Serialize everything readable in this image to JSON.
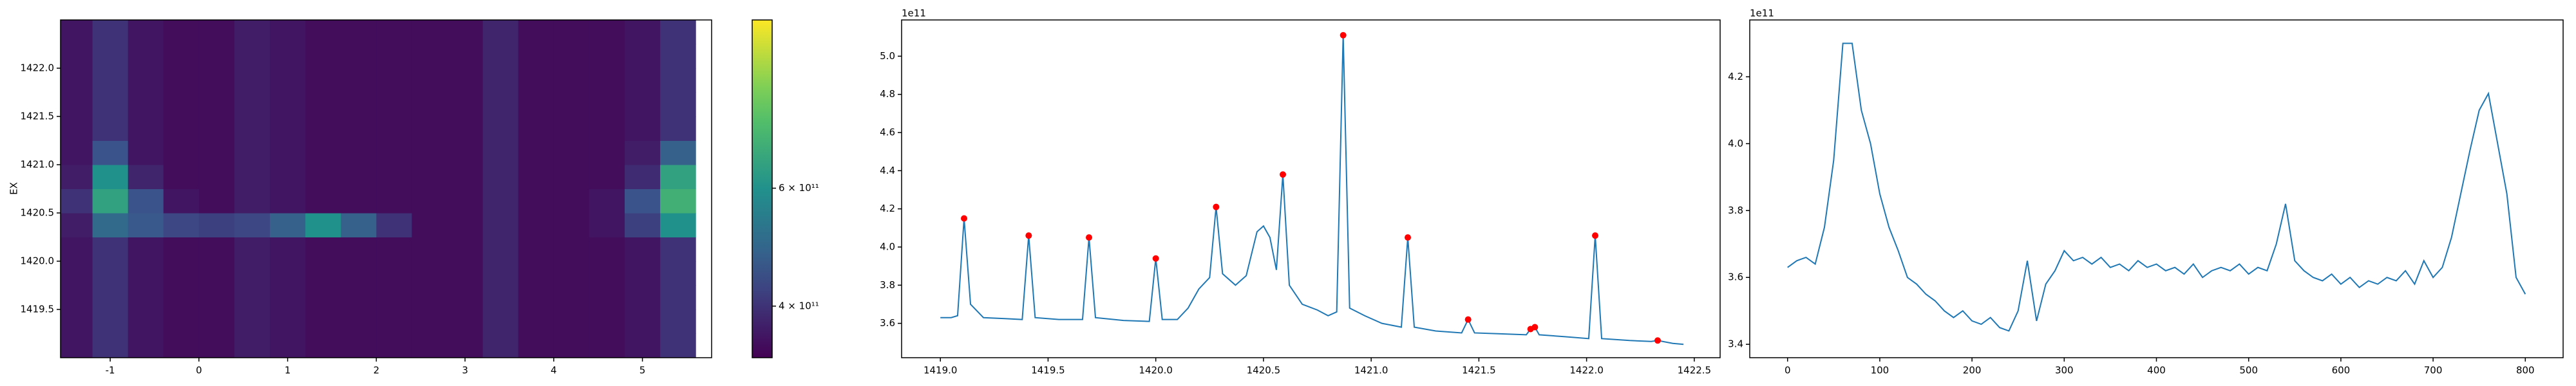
{
  "chart_data": [
    {
      "type": "heatmap",
      "ylabel": "EX",
      "colormap": "viridis",
      "x": [
        -1.4,
        -1.0,
        -0.6,
        -0.2,
        0.2,
        0.6,
        1.0,
        1.4,
        1.8,
        2.2,
        2.6,
        3.0,
        3.4,
        3.8,
        4.2,
        4.6,
        5.0,
        5.4
      ],
      "y": [
        1419.125,
        1419.375,
        1419.625,
        1419.875,
        1420.125,
        1420.375,
        1420.625,
        1420.875,
        1421.125,
        1421.375,
        1421.625,
        1421.875,
        1422.125,
        1422.375
      ],
      "z": [
        [
          360000000000.0,
          400000000000.0,
          360000000000.0,
          350000000000.0,
          350000000000.0,
          370000000000.0,
          360000000000.0,
          350000000000.0,
          350000000000.0,
          350000000000.0,
          350000000000.0,
          350000000000.0,
          380000000000.0,
          350000000000.0,
          350000000000.0,
          350000000000.0,
          360000000000.0,
          400000000000.0
        ],
        [
          360000000000.0,
          400000000000.0,
          360000000000.0,
          350000000000.0,
          350000000000.0,
          370000000000.0,
          360000000000.0,
          350000000000.0,
          350000000000.0,
          350000000000.0,
          350000000000.0,
          350000000000.0,
          380000000000.0,
          350000000000.0,
          350000000000.0,
          350000000000.0,
          360000000000.0,
          400000000000.0
        ],
        [
          360000000000.0,
          400000000000.0,
          360000000000.0,
          350000000000.0,
          350000000000.0,
          370000000000.0,
          360000000000.0,
          350000000000.0,
          350000000000.0,
          350000000000.0,
          350000000000.0,
          350000000000.0,
          380000000000.0,
          350000000000.0,
          350000000000.0,
          350000000000.0,
          360000000000.0,
          400000000000.0
        ],
        [
          360000000000.0,
          400000000000.0,
          360000000000.0,
          350000000000.0,
          350000000000.0,
          370000000000.0,
          360000000000.0,
          350000000000.0,
          350000000000.0,
          350000000000.0,
          350000000000.0,
          350000000000.0,
          380000000000.0,
          350000000000.0,
          350000000000.0,
          350000000000.0,
          360000000000.0,
          400000000000.0
        ],
        [
          360000000000.0,
          400000000000.0,
          360000000000.0,
          350000000000.0,
          350000000000.0,
          370000000000.0,
          360000000000.0,
          350000000000.0,
          350000000000.0,
          350000000000.0,
          350000000000.0,
          350000000000.0,
          380000000000.0,
          350000000000.0,
          350000000000.0,
          350000000000.0,
          360000000000.0,
          400000000000.0
        ],
        [
          370000000000.0,
          500000000000.0,
          460000000000.0,
          430000000000.0,
          420000000000.0,
          430000000000.0,
          480000000000.0,
          600000000000.0,
          480000000000.0,
          400000000000.0,
          350000000000.0,
          350000000000.0,
          380000000000.0,
          350000000000.0,
          350000000000.0,
          360000000000.0,
          420000000000.0,
          600000000000.0
        ],
        [
          400000000000.0,
          650000000000.0,
          450000000000.0,
          360000000000.0,
          350000000000.0,
          370000000000.0,
          360000000000.0,
          350000000000.0,
          350000000000.0,
          350000000000.0,
          350000000000.0,
          350000000000.0,
          380000000000.0,
          350000000000.0,
          350000000000.0,
          360000000000.0,
          450000000000.0,
          700000000000.0
        ],
        [
          370000000000.0,
          600000000000.0,
          380000000000.0,
          350000000000.0,
          350000000000.0,
          370000000000.0,
          360000000000.0,
          350000000000.0,
          350000000000.0,
          350000000000.0,
          350000000000.0,
          350000000000.0,
          380000000000.0,
          350000000000.0,
          350000000000.0,
          350000000000.0,
          390000000000.0,
          650000000000.0
        ],
        [
          360000000000.0,
          450000000000.0,
          360000000000.0,
          350000000000.0,
          350000000000.0,
          370000000000.0,
          360000000000.0,
          350000000000.0,
          350000000000.0,
          350000000000.0,
          350000000000.0,
          350000000000.0,
          380000000000.0,
          350000000000.0,
          350000000000.0,
          350000000000.0,
          370000000000.0,
          480000000000.0
        ],
        [
          360000000000.0,
          400000000000.0,
          360000000000.0,
          350000000000.0,
          350000000000.0,
          370000000000.0,
          360000000000.0,
          350000000000.0,
          350000000000.0,
          350000000000.0,
          350000000000.0,
          350000000000.0,
          380000000000.0,
          350000000000.0,
          350000000000.0,
          350000000000.0,
          360000000000.0,
          400000000000.0
        ],
        [
          360000000000.0,
          400000000000.0,
          360000000000.0,
          350000000000.0,
          350000000000.0,
          370000000000.0,
          360000000000.0,
          350000000000.0,
          350000000000.0,
          350000000000.0,
          350000000000.0,
          350000000000.0,
          380000000000.0,
          350000000000.0,
          350000000000.0,
          350000000000.0,
          360000000000.0,
          400000000000.0
        ],
        [
          360000000000.0,
          400000000000.0,
          360000000000.0,
          350000000000.0,
          350000000000.0,
          370000000000.0,
          360000000000.0,
          350000000000.0,
          350000000000.0,
          350000000000.0,
          350000000000.0,
          350000000000.0,
          380000000000.0,
          350000000000.0,
          350000000000.0,
          350000000000.0,
          360000000000.0,
          400000000000.0
        ],
        [
          360000000000.0,
          400000000000.0,
          360000000000.0,
          350000000000.0,
          350000000000.0,
          370000000000.0,
          360000000000.0,
          350000000000.0,
          350000000000.0,
          350000000000.0,
          350000000000.0,
          350000000000.0,
          380000000000.0,
          350000000000.0,
          350000000000.0,
          350000000000.0,
          360000000000.0,
          400000000000.0
        ],
        [
          360000000000.0,
          400000000000.0,
          360000000000.0,
          350000000000.0,
          350000000000.0,
          370000000000.0,
          360000000000.0,
          350000000000.0,
          350000000000.0,
          350000000000.0,
          350000000000.0,
          350000000000.0,
          380000000000.0,
          350000000000.0,
          350000000000.0,
          350000000000.0,
          360000000000.0,
          400000000000.0
        ]
      ],
      "xlim": [
        -1.56,
        5.78
      ],
      "xticks": [
        -1,
        0,
        1,
        2,
        3,
        4,
        5
      ],
      "ylim": [
        1419.0,
        1422.5
      ],
      "yticks": [
        1419.5,
        {
          "value": 1420,
          "label": "1420.0"
        },
        1420.5,
        {
          "value": 1421,
          "label": "1421.0"
        },
        1421.5,
        {
          "value": 1422,
          "label": "1422.0"
        }
      ],
      "clim": [
        335000000000.0,
        1070000000000.0
      ],
      "clog": true,
      "cticks": [
        {
          "value": 400000000000.0,
          "label": "4 × 10¹¹"
        },
        {
          "value": 600000000000.0,
          "label": "6 × 10¹¹"
        }
      ]
    },
    {
      "type": "line",
      "offset_label": "1e11",
      "series": [
        {
          "color": "#1f77b4",
          "x": [
            1419.0,
            1419.05,
            1419.08,
            1419.11,
            1419.14,
            1419.2,
            1419.3,
            1419.38,
            1419.41,
            1419.44,
            1419.55,
            1419.66,
            1419.69,
            1419.72,
            1419.85,
            1419.97,
            1420.0,
            1420.03,
            1420.1,
            1420.15,
            1420.2,
            1420.25,
            1420.28,
            1420.31,
            1420.37,
            1420.42,
            1420.47,
            1420.5,
            1420.53,
            1420.56,
            1420.59,
            1420.62,
            1420.68,
            1420.75,
            1420.8,
            1420.84,
            1420.87,
            1420.9,
            1420.97,
            1421.05,
            1421.14,
            1421.17,
            1421.2,
            1421.3,
            1421.42,
            1421.45,
            1421.48,
            1421.6,
            1421.72,
            1421.74,
            1421.76,
            1421.78,
            1421.9,
            1422.01,
            1422.04,
            1422.07,
            1422.2,
            1422.3,
            1422.33,
            1422.4,
            1422.45
          ],
          "values": [
            3.63,
            3.63,
            3.64,
            4.15,
            3.7,
            3.63,
            3.625,
            3.62,
            4.06,
            3.63,
            3.62,
            3.62,
            4.05,
            3.63,
            3.615,
            3.61,
            3.94,
            3.62,
            3.62,
            3.68,
            3.78,
            3.84,
            4.21,
            3.86,
            3.8,
            3.85,
            4.08,
            4.11,
            4.05,
            3.88,
            4.38,
            3.8,
            3.7,
            3.67,
            3.64,
            3.66,
            5.11,
            3.68,
            3.64,
            3.6,
            3.58,
            4.05,
            3.58,
            3.56,
            3.55,
            3.62,
            3.55,
            3.545,
            3.54,
            3.57,
            3.58,
            3.54,
            3.53,
            3.52,
            4.06,
            3.52,
            3.51,
            3.505,
            3.51,
            3.495,
            3.49
          ]
        },
        {
          "color": "red",
          "marker": true,
          "x": [
            1419.11,
            1419.41,
            1419.69,
            1420.0,
            1420.28,
            1420.59,
            1420.87,
            1421.17,
            1421.45,
            1421.74,
            1421.76,
            1422.04,
            1422.33
          ],
          "values": [
            4.15,
            4.06,
            4.05,
            3.94,
            4.21,
            4.38,
            5.11,
            4.05,
            3.62,
            3.57,
            3.58,
            4.06,
            3.51
          ]
        }
      ],
      "xlim": [
        1418.82,
        1422.62
      ],
      "xticks": [
        {
          "value": 1419,
          "label": "1419.0"
        },
        1419.5,
        {
          "value": 1420,
          "label": "1420.0"
        },
        1420.5,
        {
          "value": 1421,
          "label": "1421.0"
        },
        1421.5,
        {
          "value": 1422,
          "label": "1422.0"
        },
        1422.5
      ],
      "ylim": [
        3.42,
        5.19
      ],
      "yticks": [
        3.6,
        3.8,
        {
          "value": 4,
          "label": "4.0"
        },
        4.2,
        4.4,
        4.6,
        4.8,
        {
          "value": 5,
          "label": "5.0"
        }
      ]
    },
    {
      "type": "line",
      "offset_label": "1e11",
      "series": [
        {
          "color": "#1f77b4",
          "x": [
            0,
            10,
            20,
            30,
            40,
            50,
            60,
            70,
            80,
            90,
            100,
            110,
            120,
            130,
            140,
            150,
            160,
            170,
            180,
            190,
            200,
            210,
            220,
            230,
            240,
            250,
            260,
            270,
            280,
            290,
            300,
            310,
            320,
            330,
            340,
            350,
            360,
            370,
            380,
            390,
            400,
            410,
            420,
            430,
            440,
            450,
            460,
            470,
            480,
            490,
            500,
            510,
            520,
            530,
            540,
            550,
            560,
            570,
            580,
            590,
            600,
            610,
            620,
            630,
            640,
            650,
            660,
            670,
            680,
            690,
            700,
            710,
            720,
            730,
            740,
            750,
            760,
            770,
            780,
            790,
            800
          ],
          "values": [
            3.63,
            3.65,
            3.66,
            3.64,
            3.75,
            3.95,
            4.3,
            4.3,
            4.1,
            4.0,
            3.85,
            3.75,
            3.68,
            3.6,
            3.58,
            3.55,
            3.53,
            3.5,
            3.48,
            3.5,
            3.47,
            3.46,
            3.48,
            3.45,
            3.44,
            3.5,
            3.65,
            3.47,
            3.58,
            3.62,
            3.68,
            3.65,
            3.66,
            3.64,
            3.66,
            3.63,
            3.64,
            3.62,
            3.65,
            3.63,
            3.64,
            3.62,
            3.63,
            3.61,
            3.64,
            3.6,
            3.62,
            3.63,
            3.62,
            3.64,
            3.61,
            3.63,
            3.62,
            3.7,
            3.82,
            3.65,
            3.62,
            3.6,
            3.59,
            3.61,
            3.58,
            3.6,
            3.57,
            3.59,
            3.58,
            3.6,
            3.59,
            3.62,
            3.58,
            3.65,
            3.6,
            3.63,
            3.72,
            3.85,
            3.98,
            4.1,
            4.15,
            4.0,
            3.85,
            3.6,
            3.55
          ]
        }
      ],
      "xlim": [
        -41,
        841
      ],
      "xticks": [
        0,
        100,
        200,
        300,
        400,
        500,
        600,
        700,
        800
      ],
      "ylim": [
        3.36,
        4.37
      ],
      "yticks": [
        3.4,
        3.6,
        3.8,
        {
          "value": 4,
          "label": "4.0"
        },
        4.2
      ]
    }
  ]
}
